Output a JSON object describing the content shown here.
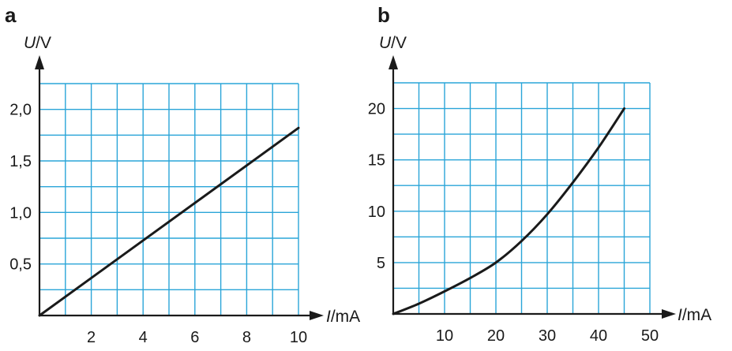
{
  "chart_data": [
    {
      "type": "line",
      "panel": "a",
      "xlabel_var": "I",
      "xlabel_unit": "/mA",
      "ylabel_var": "U",
      "ylabel_unit": "/V",
      "xlim": [
        0,
        10
      ],
      "ylim": [
        0,
        2.25
      ],
      "x_ticks": [
        2,
        4,
        6,
        8,
        10
      ],
      "x_tick_labels": [
        "2",
        "4",
        "6",
        "8",
        "10"
      ],
      "y_ticks": [
        0.5,
        1.0,
        1.5,
        2.0
      ],
      "y_tick_labels": [
        "0,5",
        "1,0",
        "1,5",
        "2,0"
      ],
      "grid": true,
      "series": [
        {
          "x": [
            0,
            10
          ],
          "y": [
            0,
            1.82
          ]
        }
      ]
    },
    {
      "type": "line",
      "panel": "b",
      "xlabel_var": "I",
      "xlabel_unit": "/mA",
      "ylabel_var": "U",
      "ylabel_unit": "/V",
      "xlim": [
        0,
        50
      ],
      "ylim": [
        0,
        22.5
      ],
      "x_ticks": [
        10,
        20,
        30,
        40,
        50
      ],
      "x_tick_labels": [
        "10",
        "20",
        "30",
        "40",
        "50"
      ],
      "y_ticks": [
        5,
        10,
        15,
        20
      ],
      "y_tick_labels": [
        "5",
        "10",
        "15",
        "20"
      ],
      "grid": true,
      "series": [
        {
          "x": [
            0,
            5,
            10,
            15,
            20,
            25,
            30,
            35,
            40,
            45
          ],
          "y": [
            0,
            1,
            2.2,
            3.5,
            5,
            7.1,
            9.7,
            12.8,
            16.2,
            20
          ]
        }
      ]
    }
  ]
}
